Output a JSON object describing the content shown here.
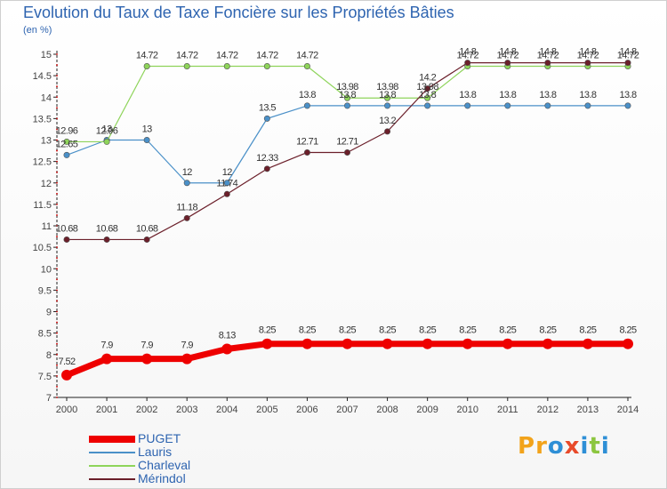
{
  "title": "Evolution du Taux de Taxe Foncière sur les Propriétés Bâties",
  "unit_label": "(en %)",
  "logo_text": "Proxiti",
  "chart_data": {
    "type": "line",
    "title": "Evolution du Taux de Taxe Foncière sur les Propriétés Bâties",
    "ylabel": "(en %)",
    "xlabel": "",
    "ylim": [
      7,
      15
    ],
    "yticks": [
      "7",
      "7.5",
      "8",
      "8.5",
      "9",
      "9.5",
      "10",
      "10.5",
      "11",
      "11.5",
      "12",
      "12.5",
      "13",
      "13.5",
      "14",
      "14.5",
      "15"
    ],
    "x": [
      "2000",
      "2001",
      "2002",
      "2003",
      "2004",
      "2005",
      "2006",
      "2007",
      "2008",
      "2009",
      "2010",
      "2011",
      "2012",
      "2013",
      "2014"
    ],
    "grid": false,
    "legend_position": "bottom-left",
    "series": [
      {
        "name": "Lauris",
        "color": "#4a90c8",
        "values": [
          12.65,
          13,
          13,
          12,
          12,
          13.5,
          13.8,
          13.8,
          13.8,
          13.8,
          13.8,
          13.8,
          13.8,
          13.8,
          13.8
        ],
        "labels": [
          "12.65",
          "13",
          "13",
          "12",
          "12",
          "13.5",
          "13.8",
          "13.8",
          "13.8",
          "13.8",
          "13.8",
          "13.8",
          "13.8",
          "13.8",
          "13.8"
        ]
      },
      {
        "name": "Charleval",
        "color": "#8ed45a",
        "values": [
          12.96,
          12.96,
          14.72,
          14.72,
          14.72,
          14.72,
          14.72,
          13.98,
          13.98,
          13.98,
          14.72,
          14.72,
          14.72,
          14.72,
          14.72
        ],
        "labels": [
          "12.96",
          "12.96",
          "14.72",
          "14.72",
          "14.72",
          "14.72",
          "14.72",
          "13.98",
          "13.98",
          "13.98",
          "14.72",
          "14.72",
          "14.72",
          "14.72",
          "14.72"
        ]
      },
      {
        "name": "Mérindol",
        "color": "#6b1f2a",
        "values": [
          10.68,
          10.68,
          10.68,
          11.18,
          11.74,
          12.33,
          12.71,
          12.71,
          13.2,
          14.2,
          14.8,
          14.8,
          14.8,
          14.8,
          14.8
        ],
        "labels": [
          "10.68",
          "10.68",
          "10.68",
          "11.18",
          "11.74",
          "12.33",
          "12.71",
          "12.71",
          "13.2",
          "14.2",
          "14.8",
          "14.8",
          "14.8",
          "14.8",
          "14.8"
        ]
      },
      {
        "name": "PUGET",
        "color": "#ee0000",
        "values": [
          7.52,
          7.9,
          7.9,
          7.9,
          8.13,
          8.25,
          8.25,
          8.25,
          8.25,
          8.25,
          8.25,
          8.25,
          8.25,
          8.25,
          8.25
        ],
        "labels": [
          "7.52",
          "7.9",
          "7.9",
          "7.9",
          "8.13",
          "8.25",
          "8.25",
          "8.25",
          "8.25",
          "8.25",
          "8.25",
          "8.25",
          "8.25",
          "8.25",
          "8.25"
        ]
      }
    ],
    "legend": [
      "PUGET",
      "Lauris",
      "Charleval",
      "Mérindol"
    ]
  },
  "logo_colors": [
    "#f2a31b",
    "#f2a31b",
    "#2e8fd6",
    "#e84a2a",
    "#2e8fd6",
    "#8cc63f",
    "#2e8fd6"
  ]
}
